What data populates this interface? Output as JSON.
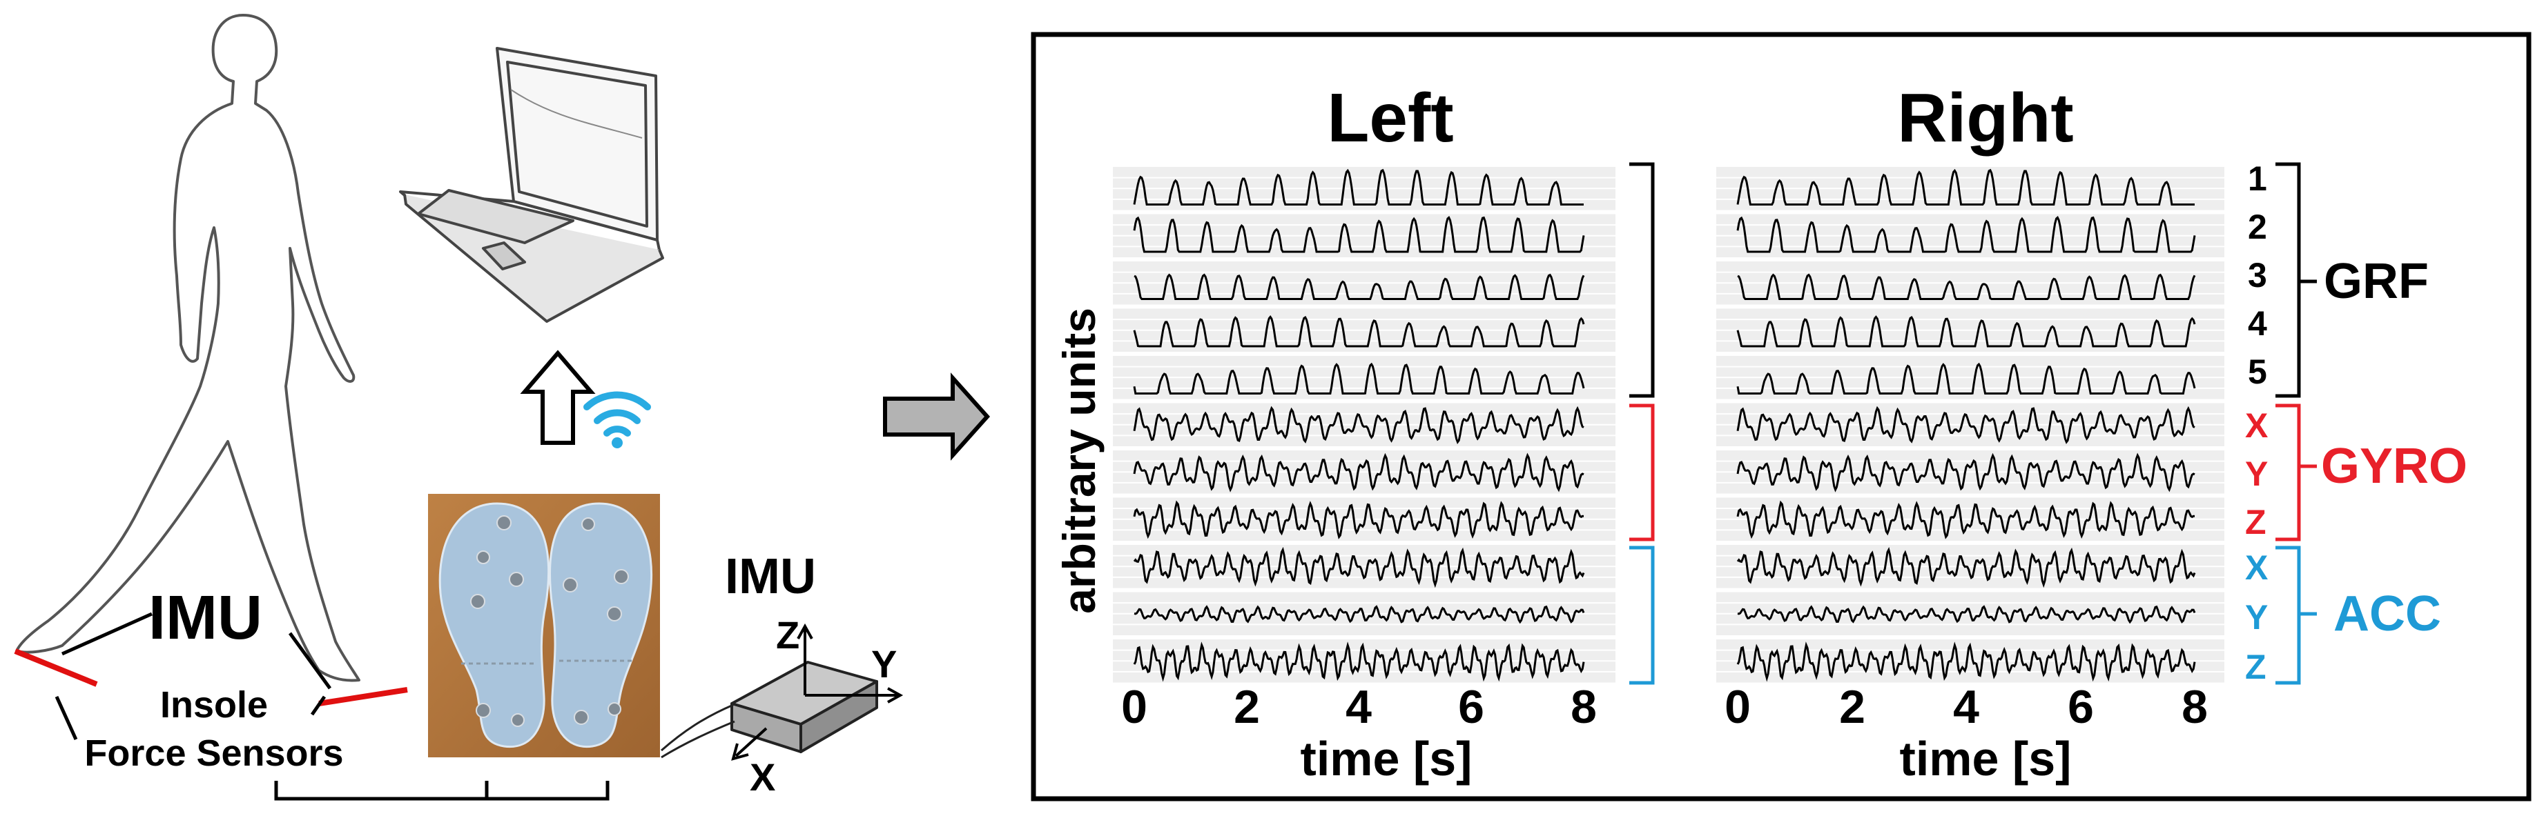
{
  "left_panel": {
    "imu_label": "IMU",
    "insole_label_line1": "Insole",
    "insole_label_line2": "Force Sensors",
    "imu_box_label": "IMU",
    "axis_x": "X",
    "axis_y": "Y",
    "axis_z": "Z"
  },
  "signal_panel": {
    "left_title": "Left",
    "right_title": "Right",
    "ylabel": "arbitrary units",
    "xlabel": "time [s]",
    "ticks": [
      "0",
      "2",
      "4",
      "6",
      "8"
    ],
    "grf_channels": [
      "1",
      "2",
      "3",
      "4",
      "5"
    ],
    "gyro_axes": [
      "X",
      "Y",
      "Z"
    ],
    "acc_axes": [
      "X",
      "Y",
      "Z"
    ],
    "group_labels": {
      "grf": "GRF",
      "gyro": "GYRO",
      "acc": "ACC"
    }
  },
  "colors": {
    "grf": "#000000",
    "gyro": "#e8202a",
    "acc": "#1e9ad6",
    "wifi": "#29abe2",
    "sensor": "#e01010",
    "insole": "#a9c4dc",
    "insole_bg": "#b5743a",
    "arrow_fill": "#b3b3b3",
    "imu_box": "#bfbfbf",
    "trace_bg": "#eeeeee"
  },
  "icons": [
    "laptop-icon",
    "wifi-icon",
    "up-arrow-icon",
    "right-arrow-icon",
    "walking-person-icon"
  ]
}
